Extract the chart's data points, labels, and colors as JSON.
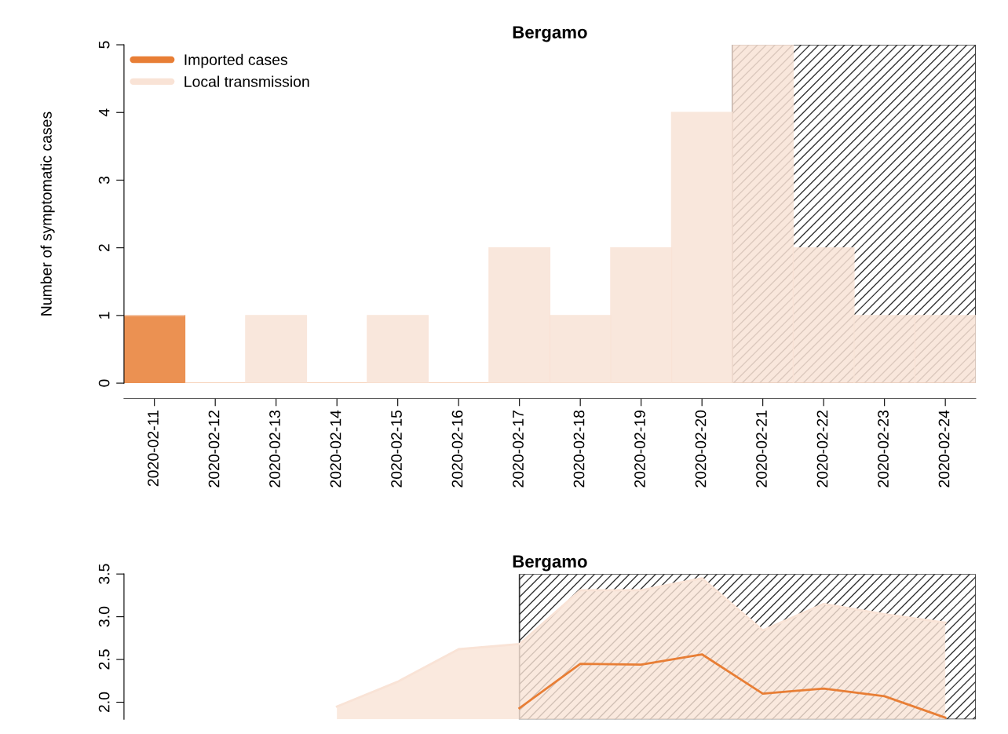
{
  "chart_data": [
    {
      "type": "bar",
      "title": "Bergamo",
      "ylabel": "Number of symptomatic cases",
      "stacked": true,
      "categories": [
        "2020-02-11",
        "2020-02-12",
        "2020-02-13",
        "2020-02-14",
        "2020-02-15",
        "2020-02-16",
        "2020-02-17",
        "2020-02-18",
        "2020-02-19",
        "2020-02-20",
        "2020-02-21",
        "2020-02-22",
        "2020-02-23",
        "2020-02-24"
      ],
      "series": [
        {
          "name": "Imported cases",
          "color": "#e87e35",
          "values": [
            1,
            0,
            0,
            0,
            0,
            0,
            0,
            0,
            0,
            0,
            0,
            0,
            0,
            0
          ]
        },
        {
          "name": "Local transmission",
          "color": "#f9e3d6",
          "values": [
            0,
            0,
            1,
            0,
            1,
            0,
            2,
            1,
            2,
            4,
            5,
            2,
            1,
            1
          ]
        }
      ],
      "ylim": [
        0,
        5
      ],
      "yticks": [
        0,
        1,
        2,
        3,
        4,
        5
      ],
      "legend": "top left",
      "grid": false,
      "bands": [
        {
          "axis": "x",
          "from": "2020-02-21",
          "to": "2020-02-24",
          "label": null,
          "color": "#333333"
        }
      ]
    },
    {
      "type": "line",
      "title": "Bergamo",
      "categories": [
        null,
        null,
        null,
        null,
        null,
        null,
        null,
        null,
        null,
        null,
        null,
        null,
        null,
        null
      ],
      "series": [
        {
          "type": "area",
          "color": "#f9e3d6",
          "values": [
            null,
            null,
            null,
            1.95,
            2.24,
            2.62,
            2.68,
            3.31,
            3.31,
            3.45,
            2.84,
            3.15,
            3.03,
            2.93
          ]
        },
        {
          "type": "line",
          "color": "#e87e35",
          "values": [
            null,
            null,
            null,
            null,
            null,
            null,
            1.93,
            2.45,
            2.44,
            2.56,
            2.1,
            2.16,
            2.07,
            1.82
          ]
        }
      ],
      "ylim": [
        1.8,
        3.5
      ],
      "yticks": [
        {
          "value": 2.0,
          "label": "2.0"
        },
        {
          "value": 2.5,
          "label": "2.5"
        },
        {
          "value": 3.0,
          "label": "3.0"
        },
        {
          "value": 3.5,
          "label": "3.5"
        }
      ],
      "tick_labels": "y",
      "grid": false
    }
  ]
}
